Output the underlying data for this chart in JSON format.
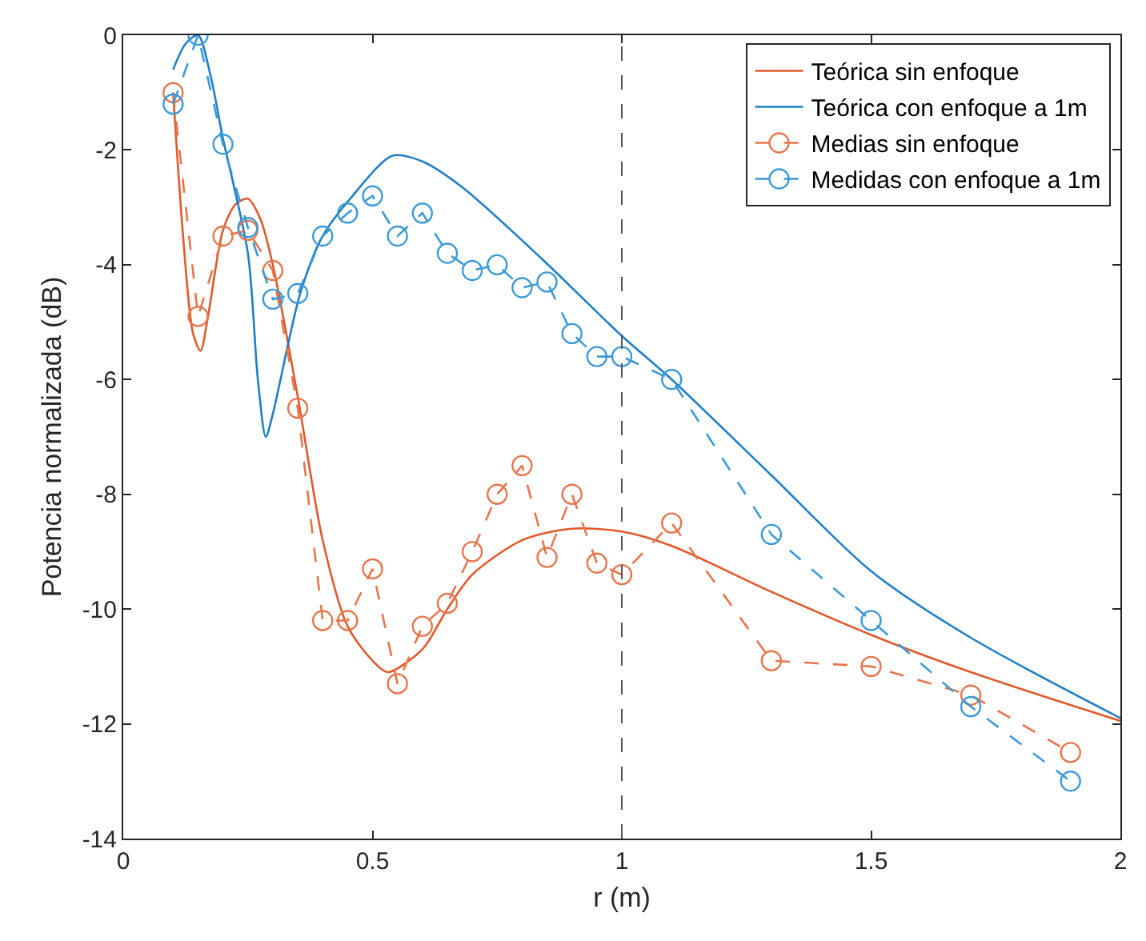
{
  "chart_data": {
    "type": "line",
    "xlabel": "r (m)",
    "ylabel": "Potencia normalizada (dB)",
    "xlim": [
      0,
      2
    ],
    "ylim": [
      -14,
      0
    ],
    "xticks": [
      0,
      0.5,
      1,
      1.5,
      2
    ],
    "yticks": [
      -14,
      -12,
      -10,
      -8,
      -6,
      -4,
      -2,
      0
    ],
    "grid": false,
    "legend": "top right",
    "series": [
      {
        "name": "Teórica sin enfoque",
        "color": "#e2592a",
        "line_style": "solid",
        "marker": "none",
        "x": [
          0.1,
          0.12,
          0.14,
          0.155,
          0.17,
          0.2,
          0.225,
          0.25,
          0.275,
          0.3,
          0.35,
          0.4,
          0.45,
          0.5,
          0.53,
          0.6,
          0.65,
          0.7,
          0.8,
          0.9,
          1.0,
          1.1,
          1.3,
          1.5,
          1.7,
          2.0
        ],
        "values": [
          -1.0,
          -3.5,
          -5.2,
          -5.5,
          -4.9,
          -3.4,
          -2.95,
          -2.85,
          -3.2,
          -4.0,
          -6.3,
          -8.8,
          -10.3,
          -10.9,
          -11.1,
          -10.7,
          -10.0,
          -9.4,
          -8.8,
          -8.6,
          -8.65,
          -8.9,
          -9.7,
          -10.45,
          -11.1,
          -11.95
        ]
      },
      {
        "name": "Teórica con enfoque a 1m",
        "color": "#1f7fc8",
        "line_style": "solid",
        "marker": "none",
        "x": [
          0.1,
          0.125,
          0.15,
          0.175,
          0.2,
          0.25,
          0.27,
          0.286,
          0.3,
          0.355,
          0.4,
          0.46,
          0.54,
          0.6,
          0.68,
          0.84,
          1.0,
          1.1,
          1.3,
          1.5,
          1.7,
          2.0
        ],
        "values": [
          -0.6,
          -0.15,
          0,
          -0.7,
          -1.8,
          -3.8,
          -6.0,
          -7.0,
          -6.6,
          -4.5,
          -3.5,
          -2.8,
          -2.1,
          -2.2,
          -2.65,
          -3.9,
          -5.24,
          -6.0,
          -7.67,
          -9.34,
          -10.5,
          -11.9
        ]
      },
      {
        "name": "Medias sin enfoque",
        "color": "#e8754a",
        "line_style": "dashed",
        "marker": "circle",
        "x": [
          0.1,
          0.15,
          0.2,
          0.25,
          0.3,
          0.35,
          0.4,
          0.45,
          0.5,
          0.55,
          0.6,
          0.65,
          0.7,
          0.75,
          0.8,
          0.85,
          0.9,
          0.95,
          1.0,
          1.1,
          1.3,
          1.5,
          1.7,
          1.9
        ],
        "values": [
          -1.0,
          -4.9,
          -3.5,
          -3.4,
          -4.1,
          -6.5,
          -10.2,
          -10.2,
          -9.3,
          -11.3,
          -10.3,
          -9.9,
          -9.0,
          -8.0,
          -7.5,
          -9.1,
          -8.0,
          -9.2,
          -9.4,
          -8.5,
          -10.9,
          -11.0,
          -11.5,
          -12.5
        ]
      },
      {
        "name": "Medidas con enfoque a 1m",
        "color": "#3a9ad9",
        "line_style": "dashed",
        "marker": "circle",
        "x": [
          0.1,
          0.15,
          0.2,
          0.25,
          0.3,
          0.35,
          0.4,
          0.45,
          0.5,
          0.55,
          0.6,
          0.65,
          0.7,
          0.75,
          0.8,
          0.85,
          0.9,
          0.95,
          1.0,
          1.1,
          1.3,
          1.5,
          1.7,
          1.9
        ],
        "values": [
          -1.2,
          0,
          -1.9,
          -3.35,
          -4.6,
          -4.5,
          -3.5,
          -3.1,
          -2.8,
          -3.5,
          -3.1,
          -3.8,
          -4.1,
          -4.0,
          -4.4,
          -4.3,
          -5.2,
          -5.6,
          -5.6,
          -6.0,
          -8.7,
          -10.2,
          -11.7,
          -13.0
        ]
      }
    ],
    "ref_lines": [
      {
        "axis": "x",
        "value": 1,
        "color": "#555555",
        "line_style": "dashed"
      }
    ]
  }
}
